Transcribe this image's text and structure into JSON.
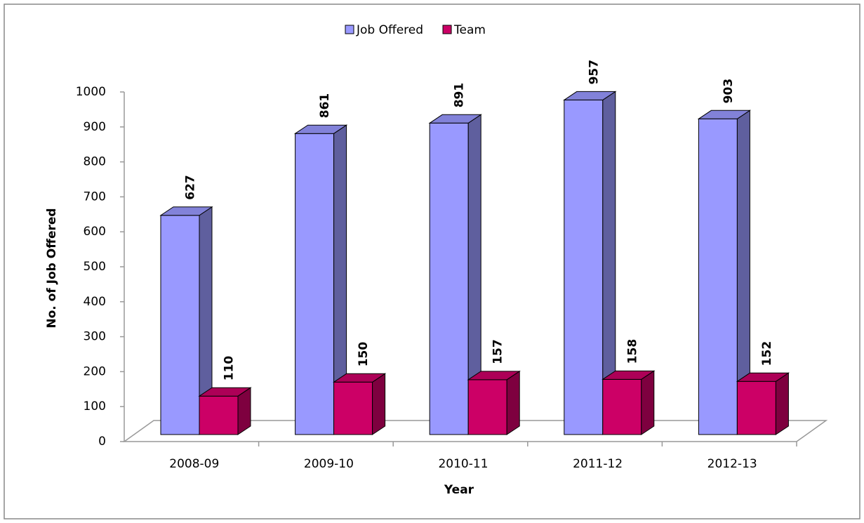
{
  "chart_data": {
    "type": "bar3d",
    "x_label": "Year",
    "y_label": "No. of Job Offered",
    "categories": [
      "2008-09",
      "2009-10",
      "2010-11",
      "2011-12",
      "2012-13"
    ],
    "series": [
      {
        "name": "Job Offered",
        "color": "#9999ff",
        "values": [
          627,
          861,
          891,
          957,
          903
        ]
      },
      {
        "name": "Team",
        "color": "#cc0066",
        "values": [
          110,
          150,
          157,
          158,
          152
        ]
      }
    ],
    "ylim": [
      0,
      1000
    ],
    "yticks": [
      0,
      100,
      200,
      300,
      400,
      500,
      600,
      700,
      800,
      900,
      1000
    ],
    "legend": "top"
  }
}
